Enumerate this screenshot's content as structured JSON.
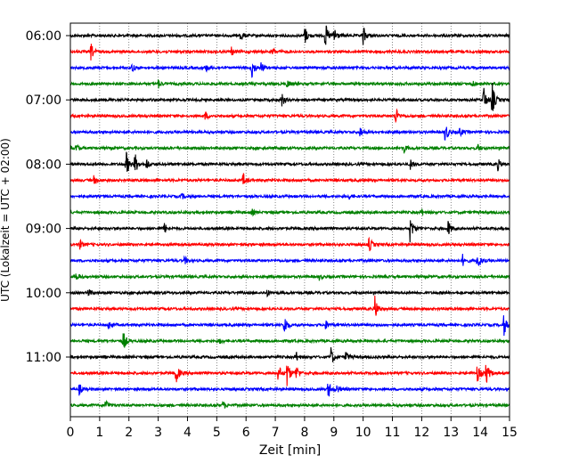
{
  "chart_data": {
    "type": "line",
    "title": "",
    "xlabel": "Zeit  [min]",
    "ylabel": "UTC (Lokalzeit = UTC + 02:00)",
    "xlim": [
      0,
      15
    ],
    "x_ticks": [
      0,
      1,
      2,
      3,
      4,
      5,
      6,
      7,
      8,
      9,
      10,
      11,
      12,
      13,
      14,
      15
    ],
    "y_ticks": [
      "06:00",
      "07:00",
      "08:00",
      "09:00",
      "10:00",
      "11:00"
    ],
    "grid": "vertical dotted",
    "trace_interval_minutes": 15,
    "trace_colors": [
      "#000000",
      "#ff0000",
      "#0000ff",
      "#008000"
    ],
    "traces": [
      {
        "start": "06:00",
        "color": "#000000",
        "events": [
          [
            5.8,
            0.5
          ],
          [
            8.0,
            0.7
          ],
          [
            8.7,
            1.0
          ],
          [
            9.0,
            0.8
          ],
          [
            10.0,
            0.7
          ]
        ]
      },
      {
        "start": "06:15",
        "color": "#ff0000",
        "events": [
          [
            0.7,
            0.6
          ],
          [
            5.5,
            0.3
          ],
          [
            6.9,
            0.3
          ]
        ]
      },
      {
        "start": "06:30",
        "color": "#0000ff",
        "events": [
          [
            2.1,
            0.3
          ],
          [
            4.6,
            0.3
          ],
          [
            6.2,
            0.8
          ],
          [
            6.5,
            0.4
          ]
        ]
      },
      {
        "start": "06:45",
        "color": "#008000",
        "events": [
          [
            3.0,
            0.3
          ],
          [
            7.4,
            0.3
          ],
          [
            13.7,
            0.3
          ]
        ]
      },
      {
        "start": "07:00",
        "color": "#000000",
        "events": [
          [
            7.2,
            0.6
          ],
          [
            14.1,
            1.1
          ],
          [
            14.4,
            1.3
          ]
        ]
      },
      {
        "start": "07:15",
        "color": "#ff0000",
        "events": [
          [
            4.6,
            0.3
          ],
          [
            11.1,
            0.7
          ]
        ]
      },
      {
        "start": "07:30",
        "color": "#0000ff",
        "events": [
          [
            9.9,
            0.4
          ],
          [
            12.8,
            0.8
          ],
          [
            13.3,
            0.3
          ]
        ]
      },
      {
        "start": "07:45",
        "color": "#008000",
        "events": [
          [
            0.2,
            0.3
          ],
          [
            11.4,
            0.3
          ],
          [
            13.9,
            0.3
          ]
        ]
      },
      {
        "start": "08:00",
        "color": "#000000",
        "events": [
          [
            1.9,
            1.0
          ],
          [
            2.2,
            0.8
          ],
          [
            2.6,
            0.4
          ],
          [
            11.6,
            0.4
          ],
          [
            14.6,
            0.4
          ]
        ]
      },
      {
        "start": "08:15",
        "color": "#ff0000",
        "events": [
          [
            0.8,
            0.3
          ],
          [
            5.9,
            0.5
          ]
        ]
      },
      {
        "start": "08:30",
        "color": "#0000ff",
        "events": [
          [
            3.8,
            0.2
          ],
          [
            9.5,
            0.2
          ]
        ]
      },
      {
        "start": "08:45",
        "color": "#008000",
        "events": [
          [
            6.2,
            0.2
          ],
          [
            12.0,
            0.2
          ]
        ]
      },
      {
        "start": "09:00",
        "color": "#000000",
        "events": [
          [
            3.2,
            0.4
          ],
          [
            11.6,
            1.0
          ],
          [
            12.9,
            0.6
          ]
        ]
      },
      {
        "start": "09:15",
        "color": "#ff0000",
        "events": [
          [
            0.3,
            0.4
          ],
          [
            10.2,
            0.6
          ]
        ]
      },
      {
        "start": "09:30",
        "color": "#0000ff",
        "events": [
          [
            3.9,
            0.3
          ],
          [
            13.4,
            0.4
          ],
          [
            13.9,
            0.8
          ]
        ]
      },
      {
        "start": "09:45",
        "color": "#008000",
        "events": [
          [
            0.2,
            0.3
          ],
          [
            8.5,
            0.2
          ]
        ]
      },
      {
        "start": "10:00",
        "color": "#000000",
        "events": [
          [
            0.6,
            0.3
          ],
          [
            6.7,
            0.3
          ]
        ]
      },
      {
        "start": "10:15",
        "color": "#ff0000",
        "events": [
          [
            10.4,
            0.9
          ]
        ]
      },
      {
        "start": "10:30",
        "color": "#0000ff",
        "events": [
          [
            1.3,
            0.3
          ],
          [
            7.3,
            0.8
          ],
          [
            8.7,
            0.4
          ],
          [
            14.8,
            0.8
          ]
        ]
      },
      {
        "start": "10:45",
        "color": "#008000",
        "events": [
          [
            1.8,
            0.8
          ],
          [
            5.1,
            0.2
          ]
        ]
      },
      {
        "start": "11:00",
        "color": "#000000",
        "events": [
          [
            7.7,
            0.4
          ],
          [
            8.9,
            0.7
          ],
          [
            9.4,
            0.5
          ]
        ]
      },
      {
        "start": "11:15",
        "color": "#ff0000",
        "events": [
          [
            3.6,
            0.9
          ],
          [
            7.1,
            0.7
          ],
          [
            7.4,
            1.0
          ],
          [
            7.7,
            0.6
          ],
          [
            13.9,
            0.8
          ],
          [
            14.2,
            0.9
          ]
        ]
      },
      {
        "start": "11:30",
        "color": "#0000ff",
        "events": [
          [
            0.3,
            0.4
          ],
          [
            8.8,
            0.7
          ],
          [
            9.1,
            0.3
          ]
        ]
      },
      {
        "start": "11:45",
        "color": "#008000",
        "events": [
          [
            1.2,
            0.5
          ],
          [
            5.2,
            0.3
          ]
        ]
      }
    ]
  }
}
